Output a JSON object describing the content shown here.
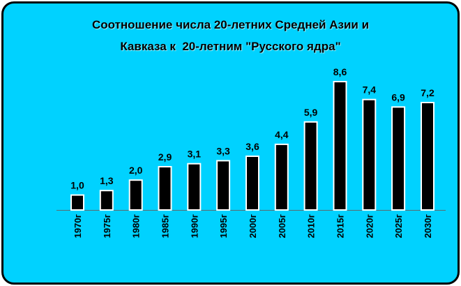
{
  "title_lines": [
    "Соотношение числа 20-летних Средней Азии и",
    "Кавказа к  20-летним \"Русского ядра\""
  ],
  "colors": {
    "background": "#00d2ff",
    "bar_fill": "#000000",
    "bar_stroke": "#ffffff",
    "text": "#000000"
  },
  "chart_data": {
    "type": "bar",
    "title": "Соотношение числа 20-летних Средней Азии и Кавказа к  20-летним \"Русского ядра\"",
    "categories": [
      "1970г",
      "1975г",
      "1980г",
      "1985г",
      "1990г",
      "1995г",
      "2000г",
      "2005г",
      "2010г",
      "2015г",
      "2020г",
      "2025г",
      "2030г"
    ],
    "values": [
      1.0,
      1.3,
      2.0,
      2.9,
      3.1,
      3.3,
      3.6,
      4.4,
      5.9,
      8.6,
      7.4,
      6.9,
      7.2
    ],
    "value_labels": [
      "1,0",
      "1,3",
      "2,0",
      "2,9",
      "3,1",
      "3,3",
      "3,6",
      "4,4",
      "5,9",
      "8,6",
      "7,4",
      "6,9",
      "7,2"
    ],
    "ylim": [
      0,
      8.6
    ],
    "grid": false,
    "legend": "none"
  }
}
